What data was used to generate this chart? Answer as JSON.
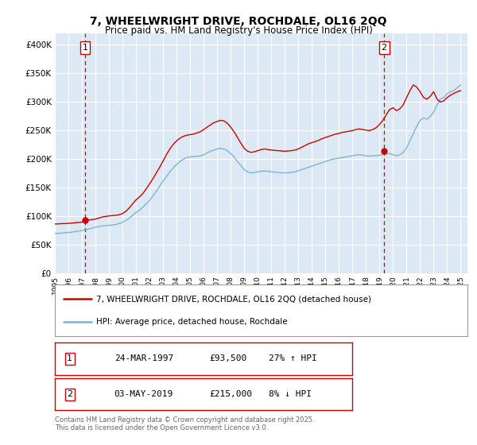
{
  "title": "7, WHEELWRIGHT DRIVE, ROCHDALE, OL16 2QQ",
  "subtitle": "Price paid vs. HM Land Registry's House Price Index (HPI)",
  "legend_line1": "7, WHEELWRIGHT DRIVE, ROCHDALE, OL16 2QQ (detached house)",
  "legend_line2": "HPI: Average price, detached house, Rochdale",
  "footnote": "Contains HM Land Registry data © Crown copyright and database right 2025.\nThis data is licensed under the Open Government Licence v3.0.",
  "sale1_label": "1",
  "sale1_date": "24-MAR-1997",
  "sale1_price": "£93,500",
  "sale1_hpi": "27% ↑ HPI",
  "sale2_label": "2",
  "sale2_date": "03-MAY-2019",
  "sale2_price": "£215,000",
  "sale2_hpi": "8% ↓ HPI",
  "sale1_year": 1997.23,
  "sale1_value": 93500,
  "sale2_year": 2019.34,
  "sale2_value": 215000,
  "vline1_year": 1997.23,
  "vline2_year": 2019.34,
  "red_line_color": "#cc0000",
  "blue_line_color": "#7fb3d3",
  "fig_bg_color": "#ffffff",
  "plot_bg_color": "#dce9f5",
  "grid_color": "#ffffff",
  "ylim": [
    0,
    420000
  ],
  "xlim_start": 1995.0,
  "xlim_end": 2025.5,
  "hpi_x": [
    1995.0,
    1995.25,
    1995.5,
    1995.75,
    1996.0,
    1996.25,
    1996.5,
    1996.75,
    1997.0,
    1997.25,
    1997.5,
    1997.75,
    1998.0,
    1998.25,
    1998.5,
    1998.75,
    1999.0,
    1999.25,
    1999.5,
    1999.75,
    2000.0,
    2000.25,
    2000.5,
    2000.75,
    2001.0,
    2001.25,
    2001.5,
    2001.75,
    2002.0,
    2002.25,
    2002.5,
    2002.75,
    2003.0,
    2003.25,
    2003.5,
    2003.75,
    2004.0,
    2004.25,
    2004.5,
    2004.75,
    2005.0,
    2005.25,
    2005.5,
    2005.75,
    2006.0,
    2006.25,
    2006.5,
    2006.75,
    2007.0,
    2007.25,
    2007.5,
    2007.75,
    2008.0,
    2008.25,
    2008.5,
    2008.75,
    2009.0,
    2009.25,
    2009.5,
    2009.75,
    2010.0,
    2010.25,
    2010.5,
    2010.75,
    2011.0,
    2011.25,
    2011.5,
    2011.75,
    2012.0,
    2012.25,
    2012.5,
    2012.75,
    2013.0,
    2013.25,
    2013.5,
    2013.75,
    2014.0,
    2014.25,
    2014.5,
    2014.75,
    2015.0,
    2015.25,
    2015.5,
    2015.75,
    2016.0,
    2016.25,
    2016.5,
    2016.75,
    2017.0,
    2017.25,
    2017.5,
    2017.75,
    2018.0,
    2018.25,
    2018.5,
    2018.75,
    2019.0,
    2019.25,
    2019.5,
    2019.75,
    2020.0,
    2020.25,
    2020.5,
    2020.75,
    2021.0,
    2021.25,
    2021.5,
    2021.75,
    2022.0,
    2022.25,
    2022.5,
    2022.75,
    2023.0,
    2023.25,
    2023.5,
    2023.75,
    2024.0,
    2024.25,
    2024.5,
    2024.75,
    2025.0
  ],
  "hpi_y": [
    70000,
    70500,
    71000,
    71500,
    72000,
    72500,
    73500,
    74500,
    75500,
    76500,
    78000,
    79500,
    81000,
    82500,
    83500,
    84000,
    84500,
    85000,
    86000,
    87500,
    90000,
    93000,
    97000,
    102000,
    107000,
    111000,
    116000,
    122000,
    128000,
    136000,
    144000,
    153000,
    162000,
    170000,
    178000,
    185000,
    191000,
    196000,
    200000,
    203000,
    204000,
    204500,
    205000,
    206000,
    208000,
    211000,
    214000,
    216000,
    218000,
    219000,
    218000,
    215000,
    210000,
    204000,
    196000,
    189000,
    182000,
    178000,
    176000,
    177000,
    178000,
    179000,
    179500,
    179000,
    178000,
    177500,
    177000,
    176500,
    176000,
    176500,
    177000,
    178000,
    180000,
    182000,
    184000,
    186000,
    188000,
    190000,
    192000,
    194000,
    196000,
    198000,
    200000,
    201000,
    202000,
    203000,
    204000,
    205000,
    206000,
    207500,
    208000,
    207000,
    206000,
    205500,
    206000,
    206500,
    207000,
    208000,
    209000,
    210000,
    208000,
    206000,
    208000,
    212000,
    220000,
    232000,
    245000,
    258000,
    268000,
    272000,
    270000,
    275000,
    282000,
    295000,
    305000,
    308000,
    315000,
    318000,
    320000,
    325000,
    330000
  ],
  "red_x": [
    1995.0,
    1995.25,
    1995.5,
    1995.75,
    1996.0,
    1996.25,
    1996.5,
    1996.75,
    1997.0,
    1997.25,
    1997.5,
    1997.75,
    1998.0,
    1998.25,
    1998.5,
    1998.75,
    1999.0,
    1999.25,
    1999.5,
    1999.75,
    2000.0,
    2000.25,
    2000.5,
    2000.75,
    2001.0,
    2001.25,
    2001.5,
    2001.75,
    2002.0,
    2002.25,
    2002.5,
    2002.75,
    2003.0,
    2003.25,
    2003.5,
    2003.75,
    2004.0,
    2004.25,
    2004.5,
    2004.75,
    2005.0,
    2005.25,
    2005.5,
    2005.75,
    2006.0,
    2006.25,
    2006.5,
    2006.75,
    2007.0,
    2007.25,
    2007.5,
    2007.75,
    2008.0,
    2008.25,
    2008.5,
    2008.75,
    2009.0,
    2009.25,
    2009.5,
    2009.75,
    2010.0,
    2010.25,
    2010.5,
    2010.75,
    2011.0,
    2011.25,
    2011.5,
    2011.75,
    2012.0,
    2012.25,
    2012.5,
    2012.75,
    2013.0,
    2013.25,
    2013.5,
    2013.75,
    2014.0,
    2014.25,
    2014.5,
    2014.75,
    2015.0,
    2015.25,
    2015.5,
    2015.75,
    2016.0,
    2016.25,
    2016.5,
    2016.75,
    2017.0,
    2017.25,
    2017.5,
    2017.75,
    2018.0,
    2018.25,
    2018.5,
    2018.75,
    2019.0,
    2019.25,
    2019.5,
    2019.75,
    2020.0,
    2020.25,
    2020.5,
    2020.75,
    2021.0,
    2021.25,
    2021.5,
    2021.75,
    2022.0,
    2022.25,
    2022.5,
    2022.75,
    2023.0,
    2023.25,
    2023.5,
    2023.75,
    2024.0,
    2024.25,
    2024.5,
    2024.75,
    2025.0
  ],
  "red_y": [
    87000,
    87000,
    87500,
    87500,
    88000,
    88500,
    89000,
    89500,
    90000,
    93500,
    94000,
    94500,
    95500,
    97000,
    99000,
    100000,
    101000,
    101500,
    102000,
    103000,
    105000,
    109000,
    115000,
    122000,
    129000,
    134000,
    140000,
    148000,
    157000,
    166000,
    176000,
    186000,
    197000,
    208000,
    218000,
    226000,
    232000,
    237000,
    240000,
    242000,
    243000,
    244000,
    246000,
    248000,
    252000,
    256000,
    260000,
    264000,
    266000,
    268000,
    267000,
    263000,
    256000,
    248000,
    238000,
    228000,
    219000,
    214000,
    212000,
    213000,
    215000,
    217000,
    218000,
    217000,
    216000,
    215500,
    215000,
    214500,
    214000,
    214500,
    215000,
    216000,
    218000,
    221000,
    224000,
    227000,
    229000,
    231000,
    233000,
    236000,
    238000,
    240000,
    242000,
    244000,
    245000,
    247000,
    248000,
    249000,
    250000,
    252000,
    253000,
    252000,
    251000,
    250000,
    252000,
    255000,
    261000,
    268000,
    278000,
    287000,
    290000,
    285000,
    288000,
    295000,
    308000,
    320000,
    330000,
    326000,
    318000,
    308000,
    305000,
    310000,
    318000,
    305000,
    300000,
    302000,
    308000,
    312000,
    315000,
    318000,
    320000
  ]
}
